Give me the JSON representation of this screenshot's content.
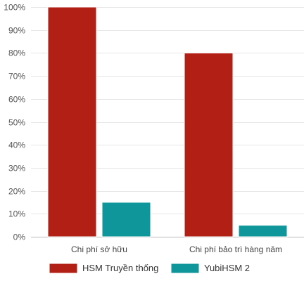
{
  "chart_data": {
    "type": "bar",
    "categories": [
      "Chi phí sở hữu",
      "Chi phí bảo trì hàng năm"
    ],
    "series": [
      {
        "name": "HSM Truyền thống",
        "values": [
          100,
          80
        ],
        "color": "#b22015"
      },
      {
        "name": "YubiHSM 2",
        "values": [
          15,
          5
        ],
        "color": "#0e969a"
      }
    ],
    "ylim": [
      0,
      100
    ],
    "yticks": [
      "0%",
      "10%",
      "20%",
      "30%",
      "40%",
      "50%",
      "60%",
      "70%",
      "80%",
      "90%",
      "100%"
    ],
    "y_unit": "%",
    "grid": true,
    "legend": "bottom",
    "title": "",
    "xlabel": "",
    "ylabel": ""
  }
}
